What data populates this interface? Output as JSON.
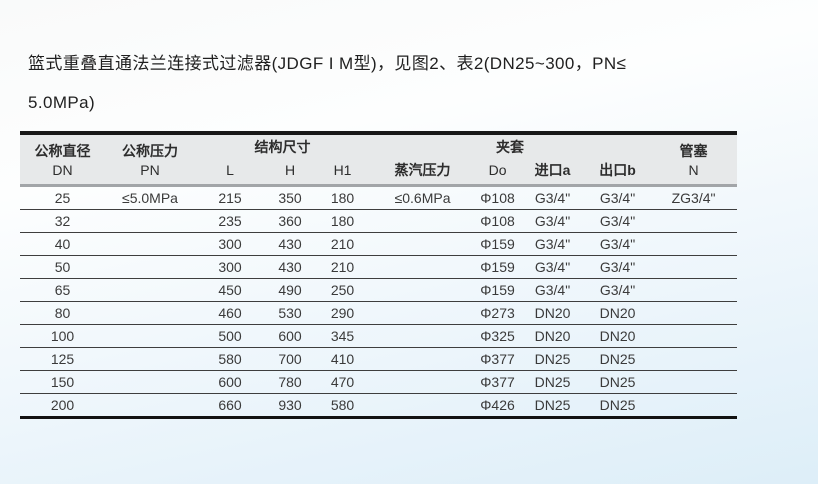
{
  "page": {
    "title_line1": "篮式重叠直通法兰连接式过滤器(JDGF I M型)，见图2、表2(DN25~300，PN≤",
    "title_line2": "5.0MPa)"
  },
  "table": {
    "header": {
      "dn_cn": "公称直径",
      "dn_en": "DN",
      "pn_cn": "公称压力",
      "pn_en": "PN",
      "structure_group": "结构尺寸",
      "col_l": "L",
      "col_h": "H",
      "col_h1": "H1",
      "jacket_group": "夹套",
      "steam": "蒸汽压力",
      "col_do": "Do",
      "inlet": "进口a",
      "outlet": "出口b",
      "plug_cn": "管塞",
      "plug_en": "N"
    },
    "row_keys": [
      "dn",
      "pn",
      "l",
      "h",
      "h1",
      "steam",
      "do_",
      "inlet",
      "outlet",
      "plug"
    ],
    "rows": [
      {
        "dn": "25",
        "pn": "≤5.0MPa",
        "l": "215",
        "h": "350",
        "h1": "180",
        "steam": "≤0.6MPa",
        "do_": "Φ108",
        "inlet": "G3/4\"",
        "outlet": "G3/4\"",
        "plug": "ZG3/4\""
      },
      {
        "dn": "32",
        "pn": "",
        "l": "235",
        "h": "360",
        "h1": "180",
        "steam": "",
        "do_": "Φ108",
        "inlet": "G3/4\"",
        "outlet": "G3/4\"",
        "plug": ""
      },
      {
        "dn": "40",
        "pn": "",
        "l": "300",
        "h": "430",
        "h1": "210",
        "steam": "",
        "do_": "Φ159",
        "inlet": "G3/4\"",
        "outlet": "G3/4\"",
        "plug": ""
      },
      {
        "dn": "50",
        "pn": "",
        "l": "300",
        "h": "430",
        "h1": "210",
        "steam": "",
        "do_": "Φ159",
        "inlet": "G3/4\"",
        "outlet": "G3/4\"",
        "plug": ""
      },
      {
        "dn": "65",
        "pn": "",
        "l": "450",
        "h": "490",
        "h1": "250",
        "steam": "",
        "do_": "Φ159",
        "inlet": "G3/4\"",
        "outlet": "G3/4\"",
        "plug": ""
      },
      {
        "dn": "80",
        "pn": "",
        "l": "460",
        "h": "530",
        "h1": "290",
        "steam": "",
        "do_": "Φ273",
        "inlet": "DN20",
        "outlet": "DN20",
        "plug": ""
      },
      {
        "dn": "100",
        "pn": "",
        "l": "500",
        "h": "600",
        "h1": "345",
        "steam": "",
        "do_": "Φ325",
        "inlet": "DN20",
        "outlet": "DN20",
        "plug": ""
      },
      {
        "dn": "125",
        "pn": "",
        "l": "580",
        "h": "700",
        "h1": "410",
        "steam": "",
        "do_": "Φ377",
        "inlet": "DN25",
        "outlet": "DN25",
        "plug": ""
      },
      {
        "dn": "150",
        "pn": "",
        "l": "600",
        "h": "780",
        "h1": "470",
        "steam": "",
        "do_": "Φ377",
        "inlet": "DN25",
        "outlet": "DN25",
        "plug": ""
      },
      {
        "dn": "200",
        "pn": "",
        "l": "660",
        "h": "930",
        "h1": "580",
        "steam": "",
        "do_": "Φ426",
        "inlet": "DN25",
        "outlet": "DN25",
        "plug": ""
      }
    ]
  }
}
